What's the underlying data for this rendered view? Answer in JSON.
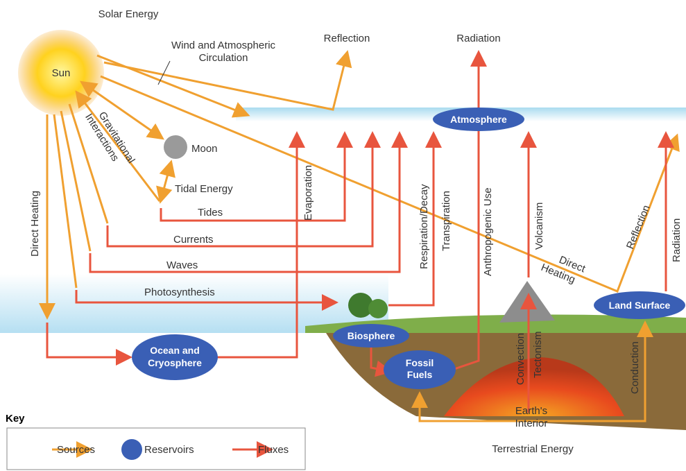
{
  "title": "Solar Energy",
  "sun": "Sun",
  "moon": "Moon",
  "sources": {
    "wind": [
      "Wind and Atmospheric",
      "Circulation"
    ],
    "gravitational": [
      "Gravitational",
      "Interactions"
    ],
    "tidal_energy": "Tidal Energy",
    "direct_heating_left": "Direct Heating",
    "direct_heating_right": [
      "Direct",
      "Heating"
    ],
    "reflection_top": "Reflection",
    "reflection_right": "Reflection",
    "conduction": "Conduction",
    "earths_interior": [
      "Earth's",
      "Interior"
    ],
    "terrestrial_energy": "Terrestrial Energy"
  },
  "fluxes": {
    "radiation_top": "Radiation",
    "radiation_right": "Radiation",
    "tides": "Tides",
    "currents": "Currents",
    "waves": "Waves",
    "photosynthesis": "Photosynthesis",
    "evaporation": "Evaporation",
    "respiration": "Respiration/Decay",
    "transpiration": "Transpiration",
    "anthropogenic": "Anthropogenic Use",
    "volcanism": "Volcanism",
    "convection": "Convection",
    "tectonism": "Tectonism"
  },
  "reservoirs": {
    "atmosphere": "Atmosphere",
    "biosphere": "Biosphere",
    "ocean": [
      "Ocean and",
      "Cryosphere"
    ],
    "fossil_fuels": [
      "Fossil",
      "Fuels"
    ],
    "land_surface": "Land Surface"
  },
  "key": {
    "title": "Key",
    "sources": "Sources",
    "reservoirs": "Reservoirs",
    "fluxes": "Fluxes"
  }
}
